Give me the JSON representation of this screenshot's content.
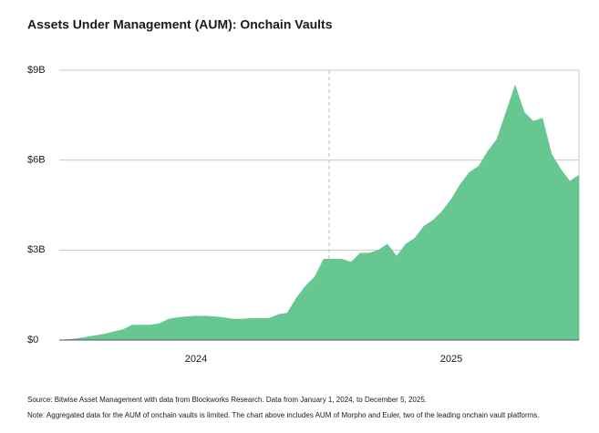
{
  "chart_data": {
    "type": "area",
    "title": "Assets Under Management (AUM): Onchain Vaults",
    "categories": [
      null,
      null,
      null,
      null,
      null,
      null,
      null,
      null,
      null,
      null,
      null,
      null,
      null,
      null,
      null,
      "2024",
      null,
      null,
      null,
      null,
      null,
      null,
      null,
      null,
      null,
      null,
      null,
      null,
      null,
      null,
      null,
      null,
      null,
      null,
      null,
      null,
      null,
      null,
      null,
      null,
      null,
      null,
      null,
      "2025",
      null,
      null,
      null,
      null,
      null,
      null,
      null,
      null,
      null,
      null,
      null,
      null,
      null,
      null
    ],
    "values": [
      0,
      0.02,
      0.05,
      0.1,
      0.15,
      0.2,
      0.28,
      0.35,
      0.5,
      0.5,
      0.5,
      0.55,
      0.7,
      0.75,
      0.78,
      0.8,
      0.8,
      0.78,
      0.75,
      0.7,
      0.7,
      0.72,
      0.72,
      0.72,
      0.85,
      0.9,
      1.4,
      1.8,
      2.1,
      2.7,
      2.7,
      2.7,
      2.6,
      2.9,
      2.9,
      3.0,
      3.2,
      2.8,
      3.2,
      3.4,
      3.8,
      4.0,
      4.3,
      4.7,
      5.2,
      5.6,
      5.8,
      6.3,
      6.7,
      7.6,
      8.5,
      7.6,
      7.3,
      7.4,
      6.2,
      5.7,
      5.3,
      5.5
    ],
    "color": "#66c791",
    "ylim": [
      0,
      9
    ],
    "yticks": [
      {
        "value": 0,
        "label": "$0"
      },
      {
        "value": 3,
        "label": "$3B"
      },
      {
        "value": 6,
        "label": "$6B"
      },
      {
        "value": 9,
        "label": "$9B"
      }
    ],
    "grid": true,
    "source": "Source: Bitwise Asset Management with data from Blockworks Research. Data from January 1, 2024, to December 5, 2025.",
    "note": "Note: Aggregated data for the AUM of onchain vaults is limited. The chart above includes AUM of Morpho and Euler, two of the leading onchain vault platforms."
  }
}
